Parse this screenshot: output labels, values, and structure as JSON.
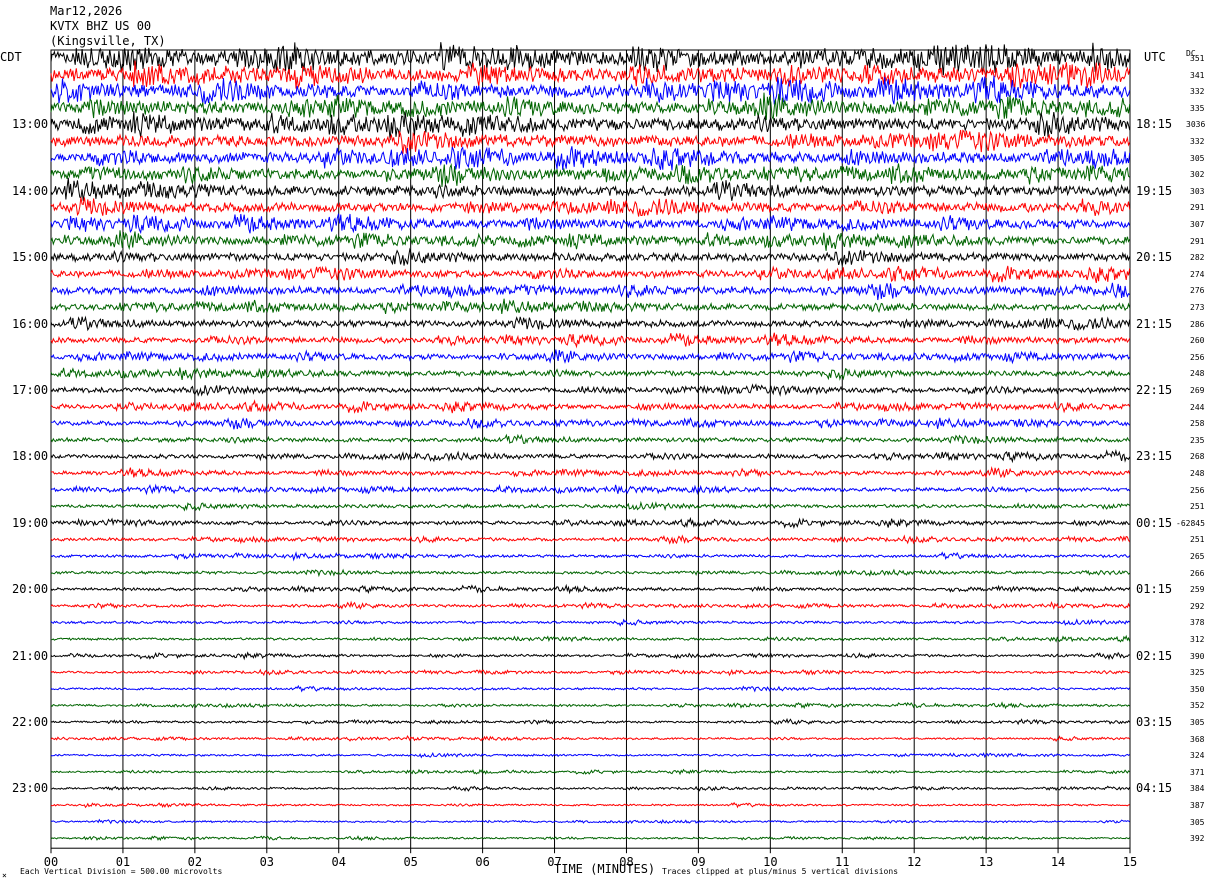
{
  "header": {
    "date": "Mar12,2026",
    "station": "KVTX BHZ US 00",
    "location": "(Kingsville, TX)"
  },
  "left_tz": "CDT",
  "right_tz": "UTC",
  "dc_label": "DC",
  "footer": {
    "scale": "Each Vertical Division =  500.00 microvolts",
    "xaxis_title": "TIME (MINUTES)",
    "clip_note": "Traces clipped at plus/minus 5 vertical divisions",
    "corner_mark": "⨯"
  },
  "colors": {
    "trace_cycle": [
      "#000000",
      "#ff0000",
      "#0000ff",
      "#006400"
    ],
    "grid": "#000000"
  },
  "chart_data": {
    "type": "line",
    "title": "Mar12,2026",
    "xlabel": "TIME (MINUTES)",
    "ylabel": "",
    "xlim": [
      0,
      15
    ],
    "x_ticks": [
      "00",
      "01",
      "02",
      "03",
      "04",
      "05",
      "06",
      "07",
      "08",
      "09",
      "10",
      "11",
      "12",
      "13",
      "14",
      "15"
    ],
    "rows_per_hour": 4,
    "trace_count": 48,
    "hour_labels_left": [
      "13:00",
      "14:00",
      "15:00",
      "16:00",
      "17:00",
      "18:00",
      "19:00",
      "20:00",
      "21:00",
      "22:00",
      "23:00"
    ],
    "hour_labels_right": [
      "18:15",
      "19:15",
      "20:15",
      "21:15",
      "22:15",
      "23:15",
      "00:15",
      "01:15",
      "02:15",
      "03:15",
      "04:15"
    ],
    "dc_values": [
      "351",
      "341",
      "332",
      "335",
      "3036",
      "332",
      "305",
      "302",
      "303",
      "291",
      "307",
      "291",
      "282",
      "274",
      "276",
      "273",
      "286",
      "260",
      "256",
      "248",
      "269",
      "244",
      "258",
      "235",
      "268",
      "248",
      "256",
      "251",
      "-62845",
      "251",
      "265",
      "266",
      "259",
      "292",
      "378",
      "312",
      "390",
      "325",
      "350",
      "352",
      "305",
      "368",
      "324",
      "371",
      "384",
      "387",
      "305",
      "392"
    ],
    "amplitude_profile": [
      1.0,
      0.95,
      0.9,
      0.85,
      0.85,
      0.8,
      0.75,
      0.7,
      0.7,
      0.65,
      0.6,
      0.55,
      0.55,
      0.5,
      0.5,
      0.45,
      0.45,
      0.4,
      0.38,
      0.36,
      0.36,
      0.34,
      0.32,
      0.3,
      0.3,
      0.28,
      0.26,
      0.25,
      0.25,
      0.22,
      0.2,
      0.2,
      0.2,
      0.18,
      0.18,
      0.17,
      0.17,
      0.16,
      0.16,
      0.15,
      0.15,
      0.14,
      0.14,
      0.13,
      0.13,
      0.13,
      0.12,
      0.12
    ],
    "grid": true
  }
}
